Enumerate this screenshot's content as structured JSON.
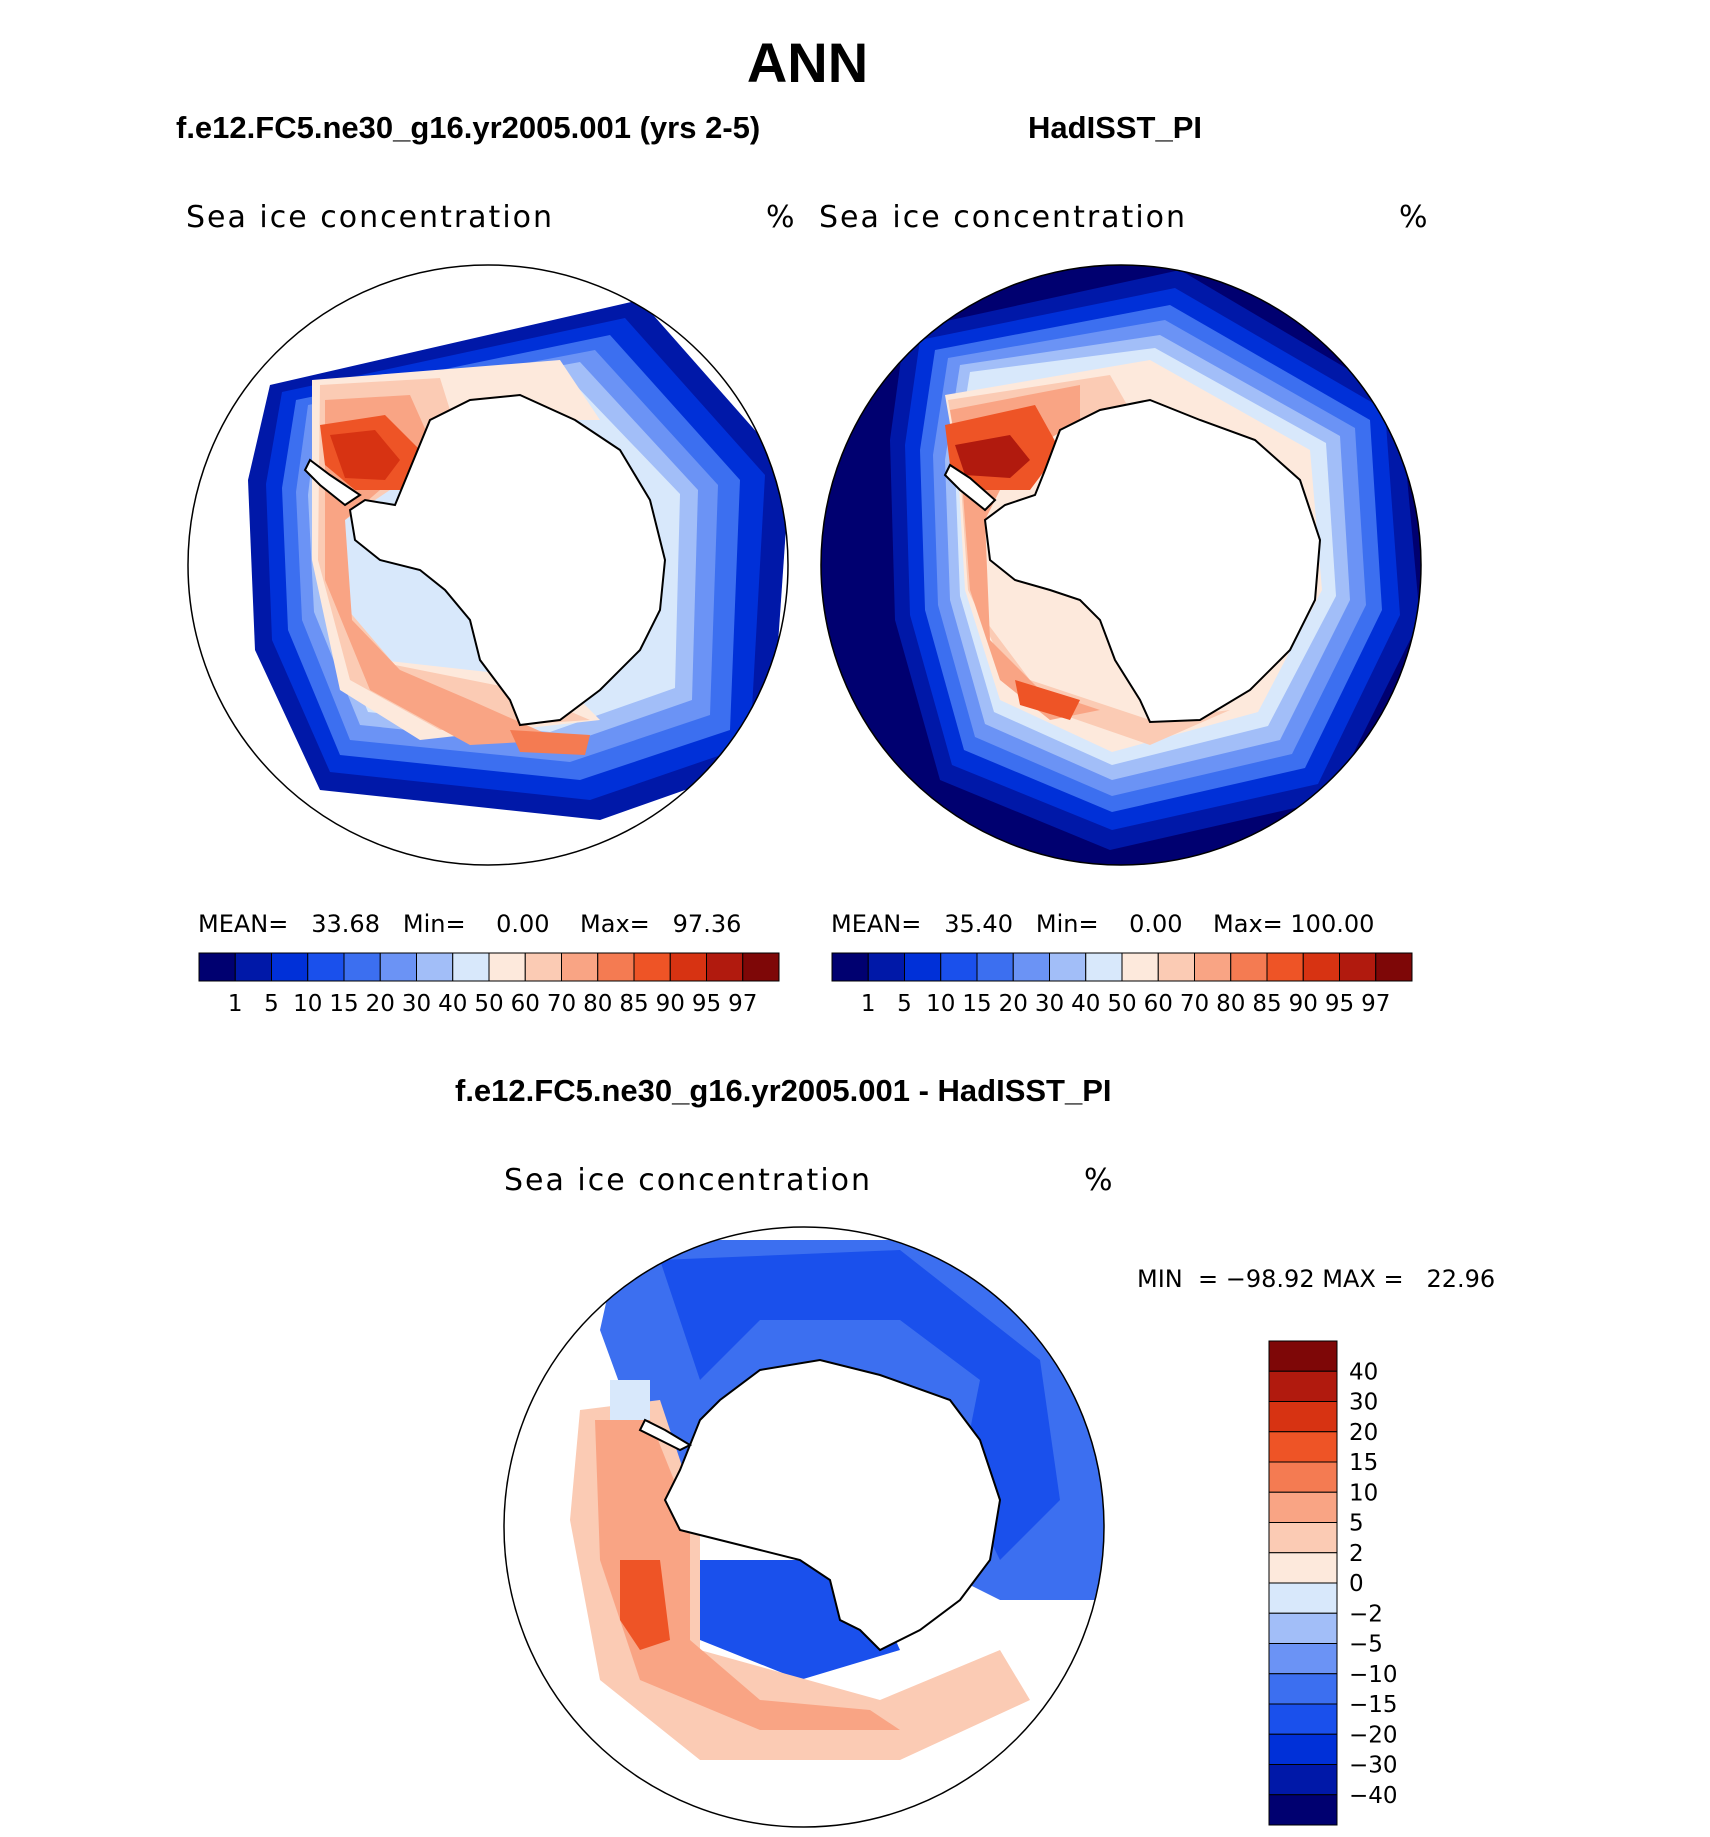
{
  "figure": {
    "title": "ANN"
  },
  "panels": [
    {
      "title": "f.e12.FC5.ne30_g16.yr2005.001 (yrs 2-5)",
      "variable": "Sea ice concentration",
      "units": "%",
      "stats": {
        "mean_label": "MEAN=",
        "mean": "33.68",
        "min_label": "Min=",
        "min": "0.00",
        "max_label": "Max=",
        "max": "97.36"
      }
    },
    {
      "title": "HadISST_PI",
      "variable": "Sea ice concentration",
      "units": "%",
      "stats": {
        "mean_label": "MEAN=",
        "mean": "35.40",
        "min_label": "Min=",
        "min": "0.00",
        "max_label": "Max=",
        "max": "100.00"
      }
    },
    {
      "title": "f.e12.FC5.ne30_g16.yr2005.001 - HadISST_PI",
      "variable": "Sea ice concentration",
      "units": "%",
      "stats": {
        "min_label": "MIN",
        "eq": "=",
        "min": "−98.92",
        "max_label": "MAX",
        "max": "22.96"
      }
    }
  ],
  "colorbar_abs": {
    "levels": [
      "1",
      "5",
      "10",
      "15",
      "20",
      "30",
      "40",
      "50",
      "60",
      "70",
      "80",
      "85",
      "90",
      "95",
      "97"
    ],
    "colors": [
      "#000070",
      "#0018a8",
      "#0030d8",
      "#1a50ec",
      "#3c6ff0",
      "#6b93f5",
      "#a2bef8",
      "#d8e8fb",
      "#fde9dc",
      "#fbcbb4",
      "#f9a484",
      "#f47b52",
      "#ee5426",
      "#d73312",
      "#b11a0e",
      "#7e0707"
    ]
  },
  "colorbar_diff": {
    "levels": [
      "40",
      "30",
      "20",
      "15",
      "10",
      "5",
      "2",
      "0",
      "−2",
      "−5",
      "−10",
      "−15",
      "−20",
      "−30",
      "−40"
    ],
    "colors": [
      "#7e0707",
      "#b11a0e",
      "#d73312",
      "#ee5426",
      "#f47b52",
      "#f9a484",
      "#fbcbb4",
      "#fde9dc",
      "#d8e8fb",
      "#a2bef8",
      "#6b93f5",
      "#3c6ff0",
      "#1a50ec",
      "#0030d8",
      "#0018a8",
      "#000070"
    ]
  }
}
